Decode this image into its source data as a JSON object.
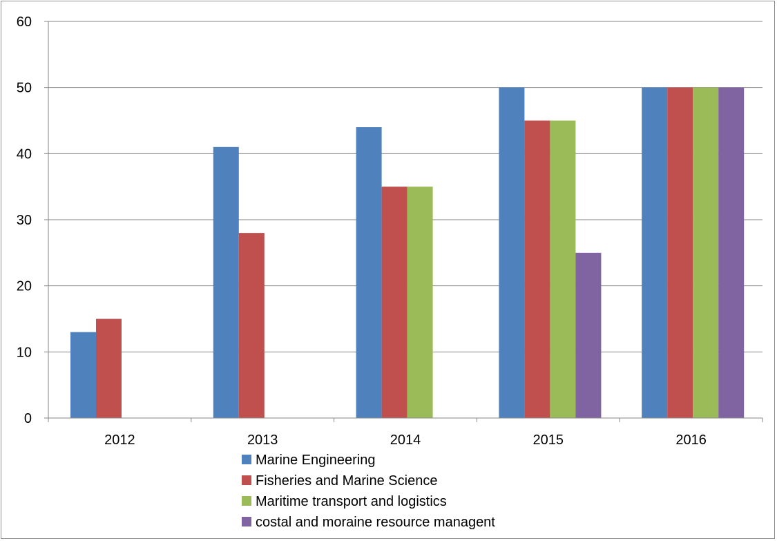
{
  "chart_data": {
    "type": "bar",
    "title": "",
    "xlabel": "",
    "ylabel": "",
    "categories": [
      "2012",
      "2013",
      "2014",
      "2015",
      "2016"
    ],
    "ylim": [
      0,
      60
    ],
    "yticks": [
      0,
      10,
      20,
      30,
      40,
      50,
      60
    ],
    "grid": true,
    "legend_position": "bottom",
    "series": [
      {
        "name": "Marine Engineering",
        "color": "#4F81BD",
        "values": [
          13,
          41,
          44,
          50,
          50
        ]
      },
      {
        "name": "Fisheries and Marine Science",
        "color": "#C0504D",
        "values": [
          15,
          28,
          35,
          45,
          50
        ]
      },
      {
        "name": "Maritime transport and logistics",
        "color": "#9BBB59",
        "values": [
          0,
          0,
          35,
          45,
          50
        ]
      },
      {
        "name": "costal and moraine resource managent",
        "color": "#8064A2",
        "values": [
          0,
          0,
          0,
          25,
          50
        ]
      }
    ]
  }
}
